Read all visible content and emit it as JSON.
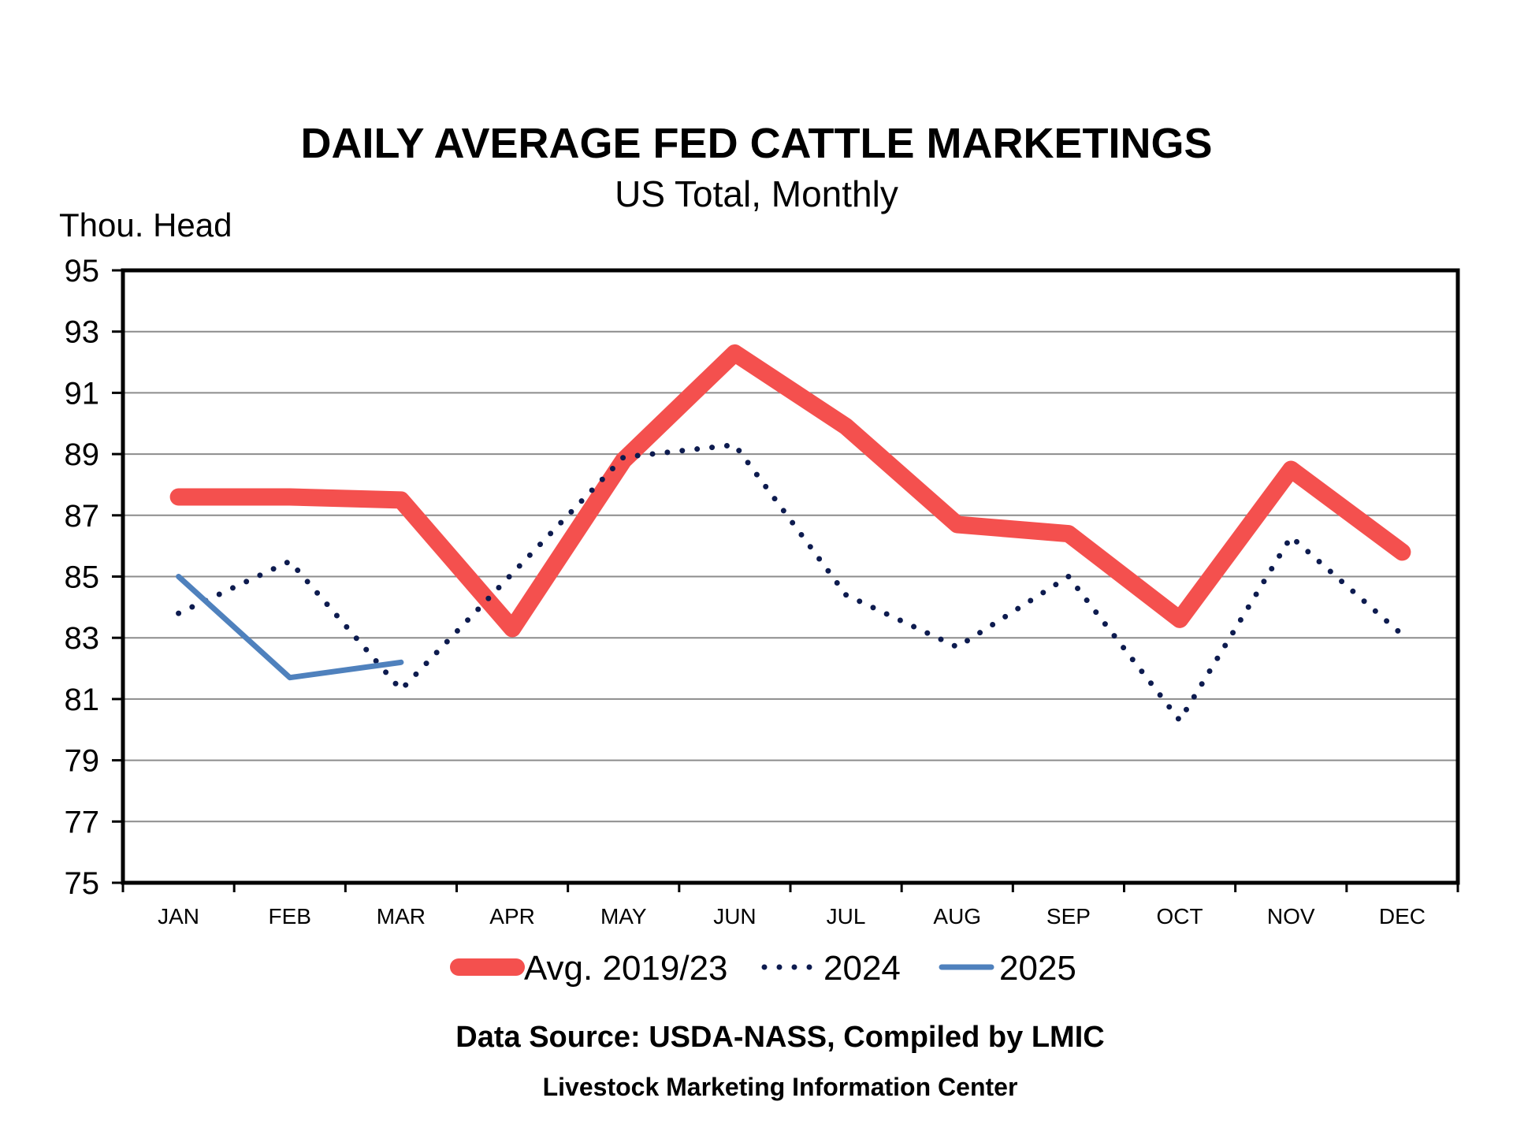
{
  "chart_data": {
    "type": "line",
    "title": "DAILY AVERAGE FED CATTLE MARKETINGS",
    "subtitle": "US Total, Monthly",
    "ylabel": "Thou. Head",
    "xlabel": "",
    "ylim": [
      75,
      95
    ],
    "yticks": [
      95,
      93,
      91,
      89,
      87,
      85,
      83,
      81,
      79,
      77,
      75
    ],
    "categories": [
      "JAN",
      "FEB",
      "MAR",
      "APR",
      "MAY",
      "JUN",
      "JUL",
      "AUG",
      "SEP",
      "OCT",
      "NOV",
      "DEC"
    ],
    "grid": true,
    "legend_position": "bottom",
    "series": [
      {
        "name": "Avg. 2019/23",
        "color": "#f4504e",
        "style": "thick-solid",
        "values": [
          87.6,
          87.6,
          87.5,
          83.3,
          88.8,
          92.3,
          89.9,
          86.7,
          86.4,
          83.6,
          88.5,
          85.8
        ]
      },
      {
        "name": "2024",
        "color": "#0d1b4f",
        "style": "dotted",
        "values": [
          83.8,
          85.5,
          81.3,
          85.1,
          88.9,
          89.3,
          84.4,
          82.7,
          85.0,
          80.3,
          86.3,
          83.1
        ]
      },
      {
        "name": "2025",
        "color": "#4f81bd",
        "style": "solid",
        "values": [
          85.0,
          81.7,
          82.2,
          null,
          null,
          null,
          null,
          null,
          null,
          null,
          null,
          null
        ]
      }
    ],
    "source": "Data Source:  USDA-NASS, Compiled by LMIC",
    "organization": "Livestock Marketing Information Center"
  }
}
